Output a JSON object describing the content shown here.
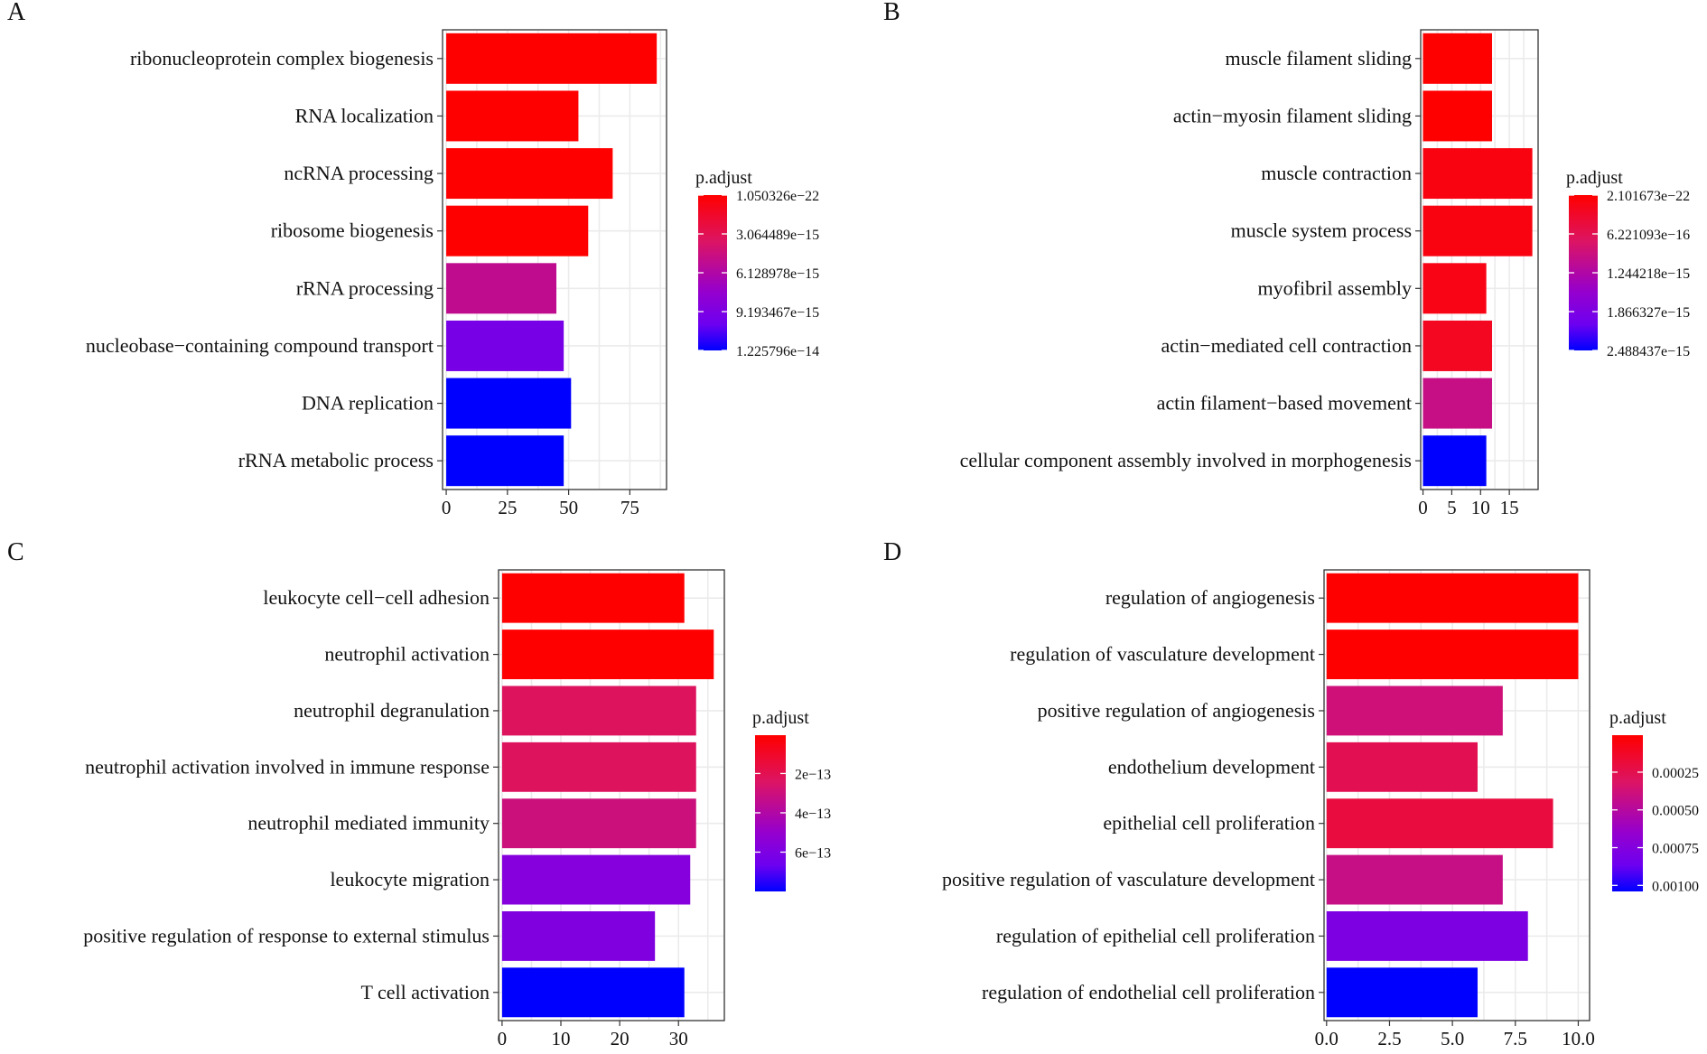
{
  "figure_title": "GO enrichment bar plots",
  "chart_data": [
    {
      "panel": "A",
      "type": "bar",
      "orientation": "horizontal",
      "categories": [
        "ribonucleoprotein complex biogenesis",
        "RNA localization",
        "ncRNA processing",
        "ribosome biogenesis",
        "rRNA processing",
        "nucleobase−containing compound transport",
        "DNA replication",
        "rRNA metabolic process"
      ],
      "values": [
        86,
        54,
        68,
        58,
        45,
        48,
        51,
        48
      ],
      "color_values": [
        1.050326e-22,
        1.1e-22,
        1.2e-22,
        2e-22,
        5.3e-15,
        9.5e-15,
        1.225796e-14,
        1.225796e-14
      ],
      "xlim": [
        -1.5,
        90
      ],
      "xticks": [
        0,
        25,
        50,
        75
      ],
      "xtick_labels": [
        "0",
        "25",
        "50",
        "75"
      ],
      "xlabel": "",
      "ylabel": "",
      "legend": {
        "title": "p.adjust",
        "position": "right",
        "range": [
          1.050326e-22,
          1.225796e-14
        ],
        "breaks": [
          1.050326e-22,
          3.064489e-15,
          6.128978e-15,
          9.193467e-15,
          1.225796e-14
        ],
        "labels": [
          "1.050326e−22",
          "3.064489e−15",
          "6.128978e−15",
          "9.193467e−15",
          "1.225796e−14"
        ]
      }
    },
    {
      "panel": "B",
      "type": "bar",
      "orientation": "horizontal",
      "categories": [
        "muscle filament sliding",
        "actin−myosin filament sliding",
        "muscle contraction",
        "muscle system process",
        "myofibril assembly",
        "actin−mediated cell contraction",
        "actin filament−based movement",
        "cellular component assembly involved in morphogenesis"
      ],
      "values": [
        12,
        12,
        19,
        19,
        11,
        12,
        12,
        11
      ],
      "color_values": [
        2.101673e-22,
        2.101673e-22,
        1.2e-16,
        1.2e-16,
        1.5e-16,
        2.5e-16,
        1e-15,
        2.488437e-15
      ],
      "xlim": [
        -0.4,
        20
      ],
      "xticks": [
        0,
        5,
        10,
        15
      ],
      "xtick_labels": [
        "0",
        "5",
        "10",
        "15"
      ],
      "xlabel": "",
      "ylabel": "",
      "legend": {
        "title": "p.adjust",
        "position": "right",
        "range": [
          2.101673e-22,
          2.488437e-15
        ],
        "breaks": [
          2.101673e-22,
          6.221093e-16,
          1.244218e-15,
          1.866327e-15,
          2.488437e-15
        ],
        "labels": [
          "2.101673e−22",
          "6.221093e−16",
          "1.244218e−15",
          "1.866327e−15",
          "2.488437e−15"
        ]
      }
    },
    {
      "panel": "C",
      "type": "bar",
      "orientation": "horizontal",
      "categories": [
        "leukocyte cell−cell adhesion",
        "neutrophil activation",
        "neutrophil degranulation",
        "neutrophil activation involved in immune response",
        "neutrophil mediated immunity",
        "leukocyte migration",
        "positive regulation of response to external stimulus",
        "T cell activation"
      ],
      "values": [
        31,
        36,
        33,
        33,
        33,
        32,
        26,
        31
      ],
      "color_values": [
        5e-15,
        5e-15,
        2.3e-13,
        2.3e-13,
        3e-13,
        5.7e-13,
        5.9e-13,
        8e-13
      ],
      "xlim": [
        -0.6,
        37.8
      ],
      "xticks": [
        0,
        10,
        20,
        30
      ],
      "xtick_labels": [
        "0",
        "10",
        "20",
        "30"
      ],
      "xlabel": "",
      "ylabel": "",
      "legend": {
        "title": "p.adjust",
        "position": "right",
        "range": [
          5e-15,
          8e-13
        ],
        "breaks": [
          2e-13,
          4e-13,
          6e-13
        ],
        "labels": [
          "2e−13",
          "4e−13",
          "6e−13"
        ]
      }
    },
    {
      "panel": "D",
      "type": "bar",
      "orientation": "horizontal",
      "categories": [
        "regulation of angiogenesis",
        "regulation of vasculature development",
        "positive regulation of angiogenesis",
        "endothelium development",
        "epithelial cell proliferation",
        "positive regulation of vasculature development",
        "regulation of epithelial cell proliferation",
        "regulation of endothelial cell proliferation"
      ],
      "values": [
        10,
        10,
        7,
        6,
        9,
        7,
        8,
        6
      ],
      "color_values": [
        5e-06,
        5e-06,
        0.00038,
        0.00026,
        0.0002,
        0.00042,
        0.00078,
        0.00104
      ],
      "xlim": [
        -0.1,
        10.45
      ],
      "xticks": [
        0,
        2.5,
        5,
        7.5,
        10
      ],
      "xtick_labels": [
        "0.0",
        "2.5",
        "5.0",
        "7.5",
        "10.0"
      ],
      "xlabel": "",
      "ylabel": "",
      "legend": {
        "title": "p.adjust",
        "position": "right",
        "range": [
          5e-06,
          0.00104
        ],
        "breaks": [
          0.00025,
          0.0005,
          0.00075,
          0.001
        ],
        "labels": [
          "0.00025",
          "0.00050",
          "0.00075",
          "0.00100"
        ]
      }
    }
  ]
}
